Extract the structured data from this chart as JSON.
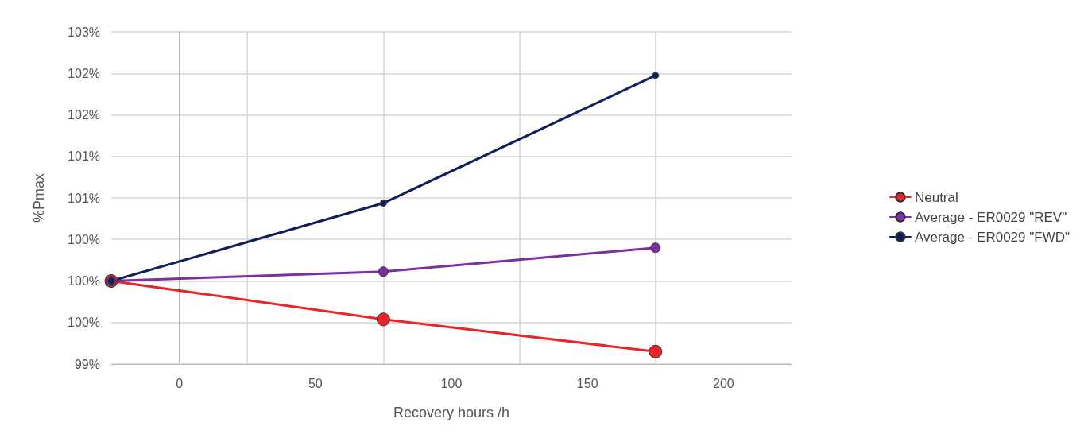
{
  "chart_data": {
    "type": "line",
    "xlabel": "Recovery hours /h",
    "ylabel": "%Pmax",
    "xlim": [
      -25,
      225
    ],
    "xticks": [
      0,
      50,
      100,
      150,
      200,
      {
        "value": 25,
        "label": null
      },
      {
        "value": 75,
        "label": null
      },
      {
        "value": 125,
        "label": null
      },
      {
        "value": 175,
        "label": null
      }
    ],
    "ylim": [
      99.3,
      102.5
    ],
    "yticks": [
      {
        "value": 99.3,
        "label": "99%"
      },
      {
        "value": 99.7,
        "label": "100%"
      },
      {
        "value": 100.1,
        "label": "100%"
      },
      {
        "value": 100.5,
        "label": "100%"
      },
      {
        "value": 100.9,
        "label": "101%"
      },
      {
        "value": 101.3,
        "label": "101%"
      },
      {
        "value": 101.7,
        "label": "102%"
      },
      {
        "value": 102.1,
        "label": "102%"
      },
      {
        "value": 102.5,
        "label": "103%"
      }
    ],
    "x": [
      -25,
      75,
      175
    ],
    "series": [
      {
        "name": "Neutral",
        "color": "#e8262a",
        "values": [
          100.1,
          99.73,
          99.42
        ]
      },
      {
        "name": "Average - ER0029 \"REV\"",
        "color": "#7b2fa0",
        "values": [
          100.1,
          100.19,
          100.42
        ]
      },
      {
        "name": "Average - ER0029 \"FWD\"",
        "color": "#0d1f5c",
        "values": [
          100.1,
          100.85,
          102.08
        ]
      }
    ],
    "grid": true,
    "legend": "right",
    "marker": "circle",
    "line_style": "solid"
  }
}
